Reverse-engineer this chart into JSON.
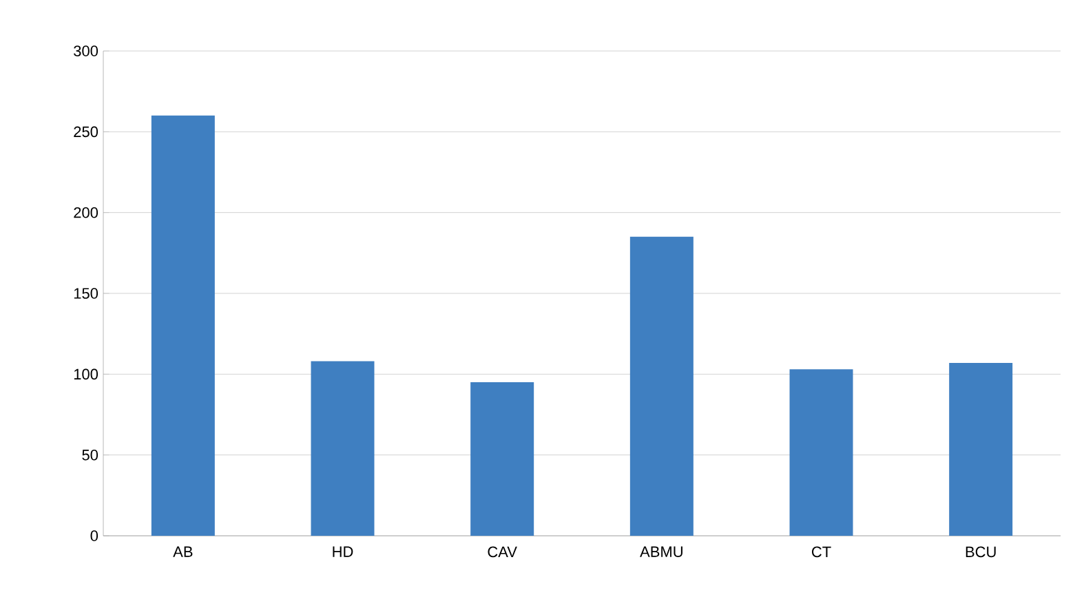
{
  "chart_data": {
    "type": "bar",
    "categories": [
      "AB",
      "HD",
      "CAV",
      "ABMU",
      "CT",
      "BCU"
    ],
    "values": [
      260,
      108,
      95,
      185,
      103,
      107
    ],
    "color": "#3f7fc1",
    "ylim": [
      0,
      300
    ],
    "yticks": [
      0,
      50,
      100,
      150,
      200,
      250,
      300
    ],
    "grid": "y"
  }
}
